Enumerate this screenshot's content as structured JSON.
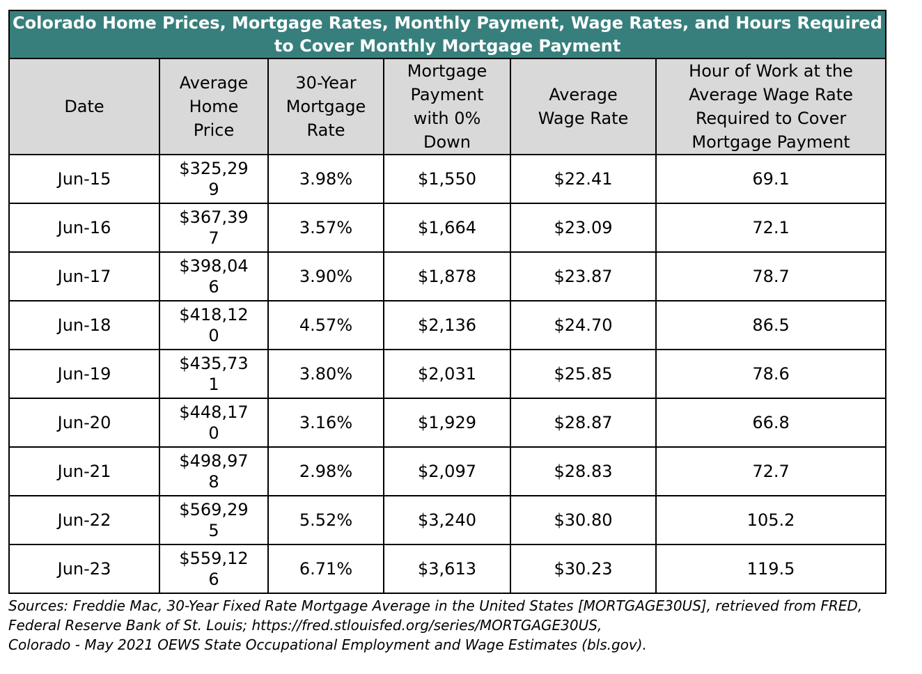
{
  "title": "Colorado Home Prices, Mortgage Rates, Monthly Payment, Wage Rates, and Hours Required to Cover Monthly Mortgage Payment",
  "columns": [
    "Date",
    "Average Home Price",
    "30-Year Mortgage Rate",
    "Mortgage Payment with 0% Down",
    "Average Wage Rate",
    "Hour of Work at the Average Wage Rate Required to Cover Mortgage Payment"
  ],
  "rows": [
    [
      "Jun-15",
      "$325,299",
      "3.98%",
      "$1,550",
      "$22.41",
      "69.1"
    ],
    [
      "Jun-16",
      "$367,397",
      "3.57%",
      "$1,664",
      "$23.09",
      "72.1"
    ],
    [
      "Jun-17",
      "$398,046",
      "3.90%",
      "$1,878",
      "$23.87",
      "78.7"
    ],
    [
      "Jun-18",
      "$418,120",
      "4.57%",
      "$2,136",
      "$24.70",
      "86.5"
    ],
    [
      "Jun-19",
      "$435,731",
      "3.80%",
      "$2,031",
      "$25.85",
      "78.6"
    ],
    [
      "Jun-20",
      "$448,170",
      "3.16%",
      "$1,929",
      "$28.87",
      "66.8"
    ],
    [
      "Jun-21",
      "$498,978",
      "2.98%",
      "$2,097",
      "$28.83",
      "72.7"
    ],
    [
      "Jun-22",
      "$569,295",
      "5.52%",
      "$3,240",
      "$30.80",
      "105.2"
    ],
    [
      "Jun-23",
      "$559,126",
      "6.71%",
      "$3,613",
      "$30.23",
      "119.5"
    ]
  ],
  "sources": [
    "Sources: Freddie Mac, 30-Year Fixed Rate Mortgage Average in the United States [MORTGAGE30US], retrieved from FRED, Federal Reserve Bank of St. Louis; https://fred.stlouisfed.org/series/MORTGAGE30US,",
    "Colorado - May 2021 OEWS State Occupational Employment and Wage Estimates (bls.gov)."
  ],
  "colors": {
    "title_bg": "#377f7c",
    "header_bg": "#d9d9d9"
  }
}
